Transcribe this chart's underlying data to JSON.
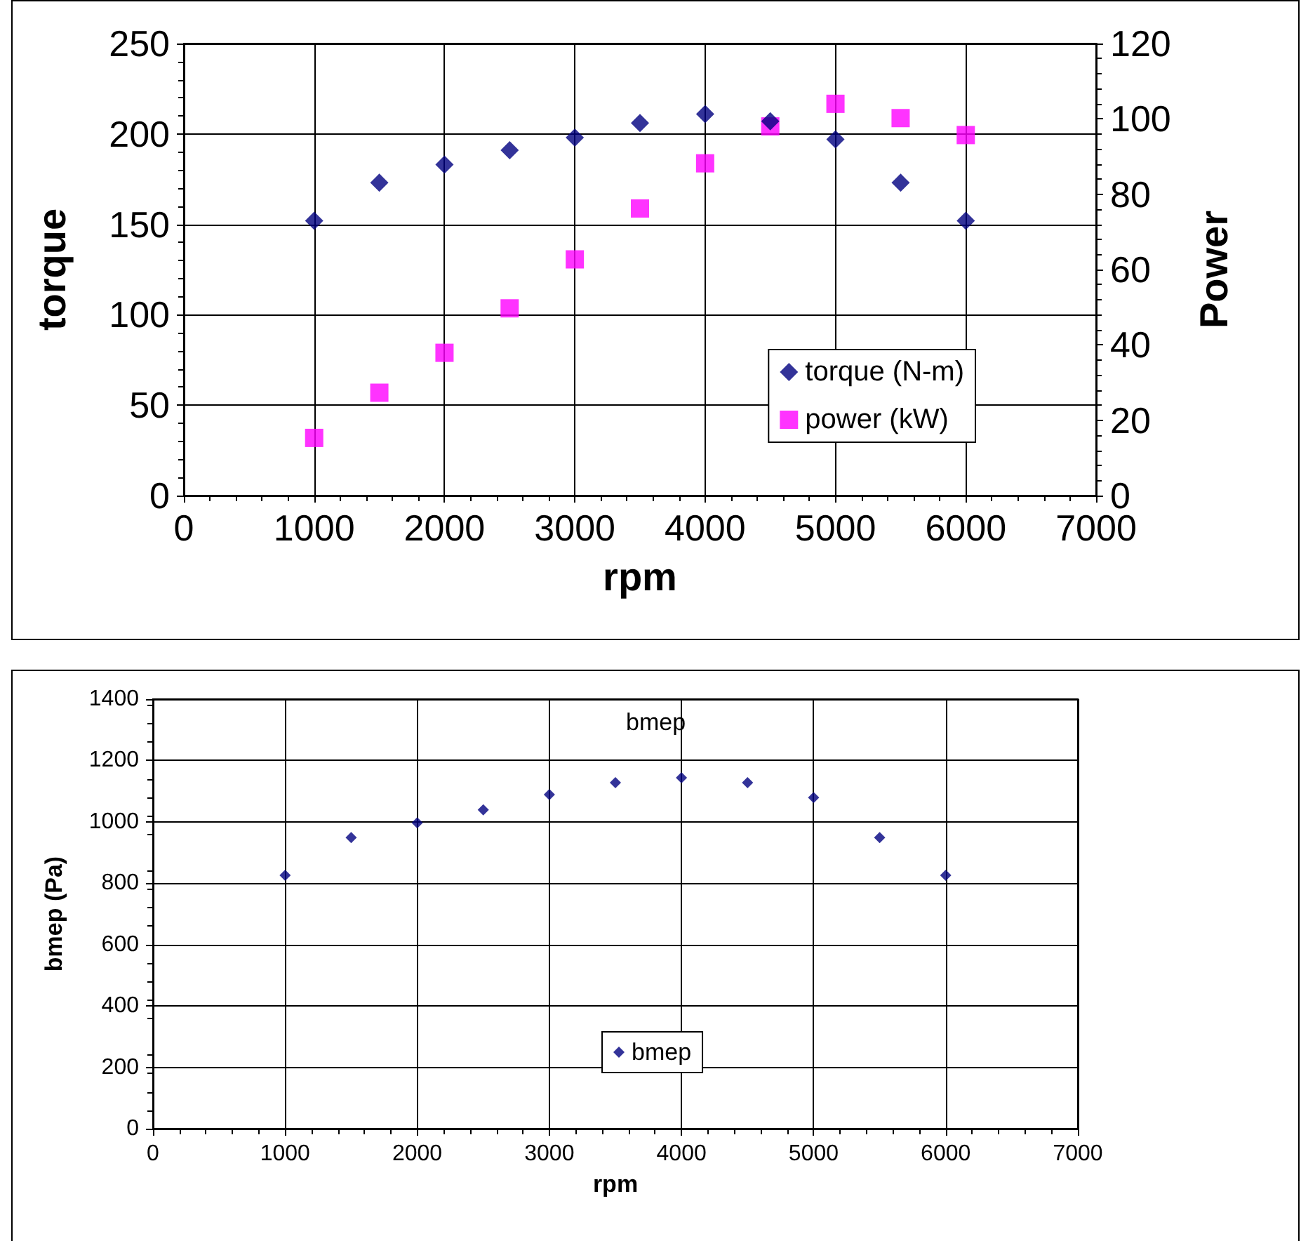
{
  "chart_data": [
    {
      "type": "scatter",
      "xlabel": "rpm",
      "ylabel": "torque",
      "y2label": "Power",
      "x": [
        1000,
        1500,
        2000,
        2500,
        3000,
        3500,
        4000,
        4500,
        5000,
        5500,
        6000
      ],
      "series": [
        {
          "name": "torque (N-m)",
          "color": "#000080",
          "marker": "diamond",
          "values": [
            152,
            173,
            183,
            191,
            198,
            206,
            211,
            207,
            197,
            173,
            152
          ]
        },
        {
          "name": "power (kW)",
          "color": "#ff00ff",
          "marker": "square",
          "axis": "y2",
          "values": [
            15.3,
            27.3,
            37.9,
            49.7,
            62.7,
            76.2,
            88.2,
            98,
            104,
            100.2,
            95.7
          ]
        }
      ],
      "xlim": [
        0,
        7000
      ],
      "xticks": [
        0,
        1000,
        2000,
        3000,
        4000,
        5000,
        6000,
        7000
      ],
      "ylim": [
        0,
        250
      ],
      "yticks": [
        0,
        50,
        100,
        150,
        200,
        250
      ],
      "y2lim": [
        0,
        120
      ],
      "y2ticks": [
        0,
        20,
        40,
        60,
        80,
        100,
        120
      ],
      "grid": true,
      "legend": "bottom right"
    },
    {
      "type": "scatter",
      "title": "bmep",
      "xlabel": "rpm",
      "ylabel": "bmep (Pa)",
      "x": [
        1000,
        1500,
        2000,
        2500,
        3000,
        3500,
        4000,
        4500,
        5000,
        5500,
        6000
      ],
      "series": [
        {
          "name": "bmep",
          "color": "#000080",
          "marker": "diamond",
          "values": [
            826,
            949,
            997,
            1039,
            1089,
            1128,
            1144,
            1128,
            1079,
            949,
            826
          ]
        }
      ],
      "xlim": [
        0,
        7000
      ],
      "xticks": [
        0,
        1000,
        2000,
        3000,
        4000,
        5000,
        6000,
        7000
      ],
      "ylim": [
        0,
        1400
      ],
      "yticks": [
        0,
        200,
        400,
        600,
        800,
        1000,
        1200,
        1400
      ],
      "grid": true,
      "legend": "bottom"
    }
  ]
}
